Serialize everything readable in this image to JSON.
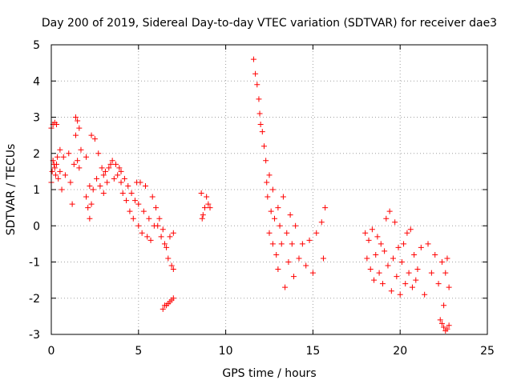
{
  "chart_data": {
    "type": "scatter",
    "title": "Day 200 of 2019, Sidereal Day-to-day VTEC variation (SDTVAR) for receiver dae3",
    "xlabel": "GPS time / hours",
    "ylabel": "SDTVAR / TECUs",
    "xlim": [
      0,
      25
    ],
    "ylim": [
      -3,
      5
    ],
    "xticks": [
      0,
      5,
      10,
      15,
      20,
      25
    ],
    "yticks": [
      -3,
      -2,
      -1,
      0,
      1,
      2,
      3,
      4,
      5
    ],
    "grid": true,
    "marker": "+",
    "color": "#ff0000",
    "series": [
      {
        "name": "segment-1",
        "points": [
          [
            0.0,
            1.2
          ],
          [
            0.05,
            1.5
          ],
          [
            0.1,
            1.8
          ],
          [
            0.15,
            1.7
          ],
          [
            0.2,
            1.6
          ],
          [
            0.25,
            1.4
          ],
          [
            0.3,
            1.7
          ],
          [
            0.0,
            2.7
          ],
          [
            0.1,
            2.8
          ],
          [
            0.2,
            2.85
          ],
          [
            0.3,
            2.8
          ],
          [
            0.35,
            1.9
          ],
          [
            0.4,
            1.3
          ],
          [
            0.5,
            1.5
          ],
          [
            0.5,
            2.1
          ],
          [
            0.6,
            1.0
          ],
          [
            0.7,
            1.9
          ],
          [
            0.8,
            1.4
          ],
          [
            1.0,
            2.0
          ],
          [
            1.1,
            1.2
          ],
          [
            1.2,
            0.6
          ],
          [
            1.3,
            1.7
          ],
          [
            1.4,
            2.5
          ],
          [
            1.4,
            3.0
          ],
          [
            1.5,
            1.8
          ],
          [
            1.5,
            2.9
          ],
          [
            1.6,
            1.6
          ],
          [
            1.6,
            2.7
          ],
          [
            1.7,
            2.1
          ]
        ]
      },
      {
        "name": "segment-2",
        "points": [
          [
            2.0,
            1.9
          ],
          [
            2.0,
            0.8
          ],
          [
            2.1,
            0.5
          ],
          [
            2.2,
            0.2
          ],
          [
            2.2,
            1.1
          ],
          [
            2.3,
            0.6
          ],
          [
            2.3,
            2.5
          ],
          [
            2.4,
            1.0
          ],
          [
            2.5,
            2.4
          ],
          [
            2.6,
            1.3
          ],
          [
            2.7,
            2.0
          ],
          [
            2.8,
            1.1
          ],
          [
            2.9,
            1.6
          ],
          [
            3.0,
            1.4
          ],
          [
            3.0,
            0.9
          ],
          [
            3.1,
            1.5
          ],
          [
            3.2,
            1.2
          ],
          [
            3.3,
            1.6
          ],
          [
            3.4,
            1.7
          ],
          [
            3.5,
            1.8
          ],
          [
            3.6,
            1.3
          ],
          [
            3.7,
            1.7
          ],
          [
            3.8,
            1.4
          ],
          [
            3.9,
            1.6
          ],
          [
            4.0,
            1.2
          ],
          [
            4.0,
            1.5
          ],
          [
            4.1,
            0.9
          ],
          [
            4.2,
            1.3
          ],
          [
            4.3,
            0.7
          ],
          [
            4.4,
            1.1
          ],
          [
            4.5,
            0.4
          ],
          [
            4.6,
            0.9
          ],
          [
            4.7,
            0.2
          ],
          [
            4.8,
            0.7
          ],
          [
            4.9,
            1.2
          ],
          [
            5.0,
            0.0
          ],
          [
            5.0,
            0.6
          ],
          [
            5.1,
            1.2
          ],
          [
            5.2,
            -0.2
          ],
          [
            5.3,
            0.4
          ],
          [
            5.4,
            1.1
          ],
          [
            5.5,
            -0.3
          ],
          [
            5.6,
            0.2
          ],
          [
            5.7,
            -0.4
          ],
          [
            5.8,
            0.8
          ],
          [
            5.9,
            0.0
          ],
          [
            6.0,
            0.5
          ],
          [
            6.1,
            0.0
          ],
          [
            6.2,
            0.2
          ],
          [
            6.3,
            -0.3
          ],
          [
            6.4,
            -0.1
          ],
          [
            6.5,
            -0.5
          ],
          [
            6.6,
            -0.6
          ],
          [
            6.7,
            -0.9
          ],
          [
            6.8,
            -0.3
          ],
          [
            6.9,
            -1.1
          ],
          [
            7.0,
            -1.2
          ],
          [
            7.0,
            -0.2
          ]
        ]
      },
      {
        "name": "segment-3",
        "points": [
          [
            6.4,
            -2.3
          ],
          [
            6.5,
            -2.2
          ],
          [
            6.6,
            -2.2
          ],
          [
            6.7,
            -2.15
          ],
          [
            6.8,
            -2.1
          ],
          [
            6.9,
            -2.05
          ],
          [
            7.0,
            -2.0
          ]
        ]
      },
      {
        "name": "segment-4",
        "points": [
          [
            8.6,
            0.9
          ],
          [
            8.7,
            0.3
          ],
          [
            8.8,
            0.5
          ],
          [
            8.9,
            0.8
          ],
          [
            9.0,
            0.6
          ],
          [
            9.1,
            0.5
          ],
          [
            8.65,
            0.2
          ]
        ]
      },
      {
        "name": "segment-5",
        "points": [
          [
            11.6,
            4.6
          ],
          [
            11.7,
            4.2
          ],
          [
            11.8,
            3.9
          ],
          [
            11.9,
            3.5
          ],
          [
            11.95,
            3.1
          ],
          [
            12.0,
            2.8
          ],
          [
            12.1,
            2.6
          ],
          [
            12.2,
            2.2
          ],
          [
            12.3,
            1.8
          ],
          [
            12.35,
            1.2
          ],
          [
            12.4,
            0.8
          ],
          [
            12.5,
            1.4
          ],
          [
            12.5,
            -0.2
          ],
          [
            12.6,
            0.4
          ],
          [
            12.7,
            1.0
          ],
          [
            12.7,
            -0.5
          ],
          [
            12.8,
            0.2
          ],
          [
            12.9,
            -0.8
          ],
          [
            13.0,
            0.5
          ],
          [
            13.0,
            -1.2
          ],
          [
            13.1,
            0.0
          ],
          [
            13.2,
            -0.5
          ],
          [
            13.3,
            0.8
          ],
          [
            13.4,
            -1.7
          ],
          [
            13.5,
            -0.2
          ],
          [
            13.6,
            -1.0
          ],
          [
            13.7,
            0.3
          ],
          [
            13.8,
            -0.5
          ],
          [
            13.9,
            -1.4
          ],
          [
            14.0,
            0.0
          ],
          [
            14.2,
            -0.9
          ],
          [
            14.4,
            -0.5
          ],
          [
            14.6,
            -1.1
          ],
          [
            14.8,
            -0.4
          ],
          [
            15.0,
            -1.3
          ],
          [
            15.2,
            -0.2
          ],
          [
            15.5,
            0.1
          ],
          [
            15.6,
            -0.9
          ],
          [
            15.7,
            0.5
          ]
        ]
      },
      {
        "name": "segment-6",
        "points": [
          [
            18.0,
            -0.2
          ],
          [
            18.1,
            -0.9
          ],
          [
            18.2,
            -0.4
          ],
          [
            18.3,
            -1.2
          ],
          [
            18.4,
            -0.1
          ],
          [
            18.5,
            -1.5
          ],
          [
            18.6,
            -0.8
          ],
          [
            18.7,
            -0.3
          ],
          [
            18.8,
            -1.3
          ],
          [
            18.9,
            -0.5
          ],
          [
            19.0,
            -1.6
          ],
          [
            19.1,
            -0.7
          ],
          [
            19.2,
            0.2
          ],
          [
            19.3,
            -1.1
          ],
          [
            19.4,
            0.4
          ],
          [
            19.5,
            -1.8
          ],
          [
            19.6,
            -0.9
          ],
          [
            19.7,
            0.1
          ],
          [
            19.8,
            -1.4
          ],
          [
            19.9,
            -0.6
          ],
          [
            20.0,
            -1.9
          ],
          [
            20.1,
            -1.0
          ],
          [
            20.2,
            -0.5
          ],
          [
            20.3,
            -1.6
          ],
          [
            20.4,
            -0.2
          ],
          [
            20.5,
            -1.3
          ],
          [
            20.6,
            -0.1
          ],
          [
            20.7,
            -1.7
          ],
          [
            20.8,
            -0.8
          ],
          [
            20.9,
            -1.5
          ],
          [
            21.0,
            -1.2
          ],
          [
            21.2,
            -0.6
          ],
          [
            21.4,
            -1.9
          ],
          [
            21.6,
            -0.5
          ],
          [
            21.8,
            -1.3
          ],
          [
            22.0,
            -0.8
          ],
          [
            22.2,
            -1.6
          ],
          [
            22.4,
            -1.0
          ],
          [
            22.5,
            -2.2
          ],
          [
            22.6,
            -1.3
          ],
          [
            22.7,
            -0.9
          ],
          [
            22.8,
            -1.7
          ],
          [
            22.4,
            -2.7
          ],
          [
            22.5,
            -2.8
          ],
          [
            22.6,
            -2.9
          ],
          [
            22.7,
            -2.85
          ],
          [
            22.8,
            -2.75
          ],
          [
            22.3,
            -2.6
          ]
        ]
      }
    ]
  }
}
